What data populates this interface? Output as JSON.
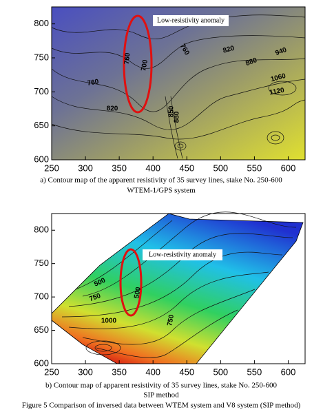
{
  "figure": {
    "panels": [
      {
        "xlim": [
          250,
          625
        ],
        "ylim": [
          600,
          825
        ],
        "xticks": [
          250,
          300,
          350,
          400,
          450,
          500,
          550,
          600
        ],
        "yticks": [
          600,
          650,
          700,
          750,
          800
        ],
        "annotation": "Low-resistivity anomaly",
        "contour_labels": [
          700,
          760,
          760,
          820,
          880,
          940,
          1060,
          1120,
          760,
          820,
          850,
          880
        ],
        "caption": "a) Contour map of the apparent resistivity of 35 survey lines, stake No. 250-600",
        "subcaption": "WTEM-1/GPS system"
      },
      {
        "xlim": [
          250,
          625
        ],
        "ylim": [
          600,
          825
        ],
        "xticks": [
          250,
          300,
          350,
          400,
          450,
          500,
          550,
          600
        ],
        "yticks": [
          600,
          650,
          700,
          750,
          800
        ],
        "annotation": "Low-resistivity anomaly",
        "contour_labels": [
          500,
          750,
          500,
          1000,
          750
        ],
        "caption": "b) Contour map of apparent resistivity of 35 survey lines, stake No. 250-600",
        "subcaption": "SIP method"
      }
    ],
    "caption": "Figure 5 Comparison of inversed data between WTEM system and V8 system (SIP method)"
  }
}
